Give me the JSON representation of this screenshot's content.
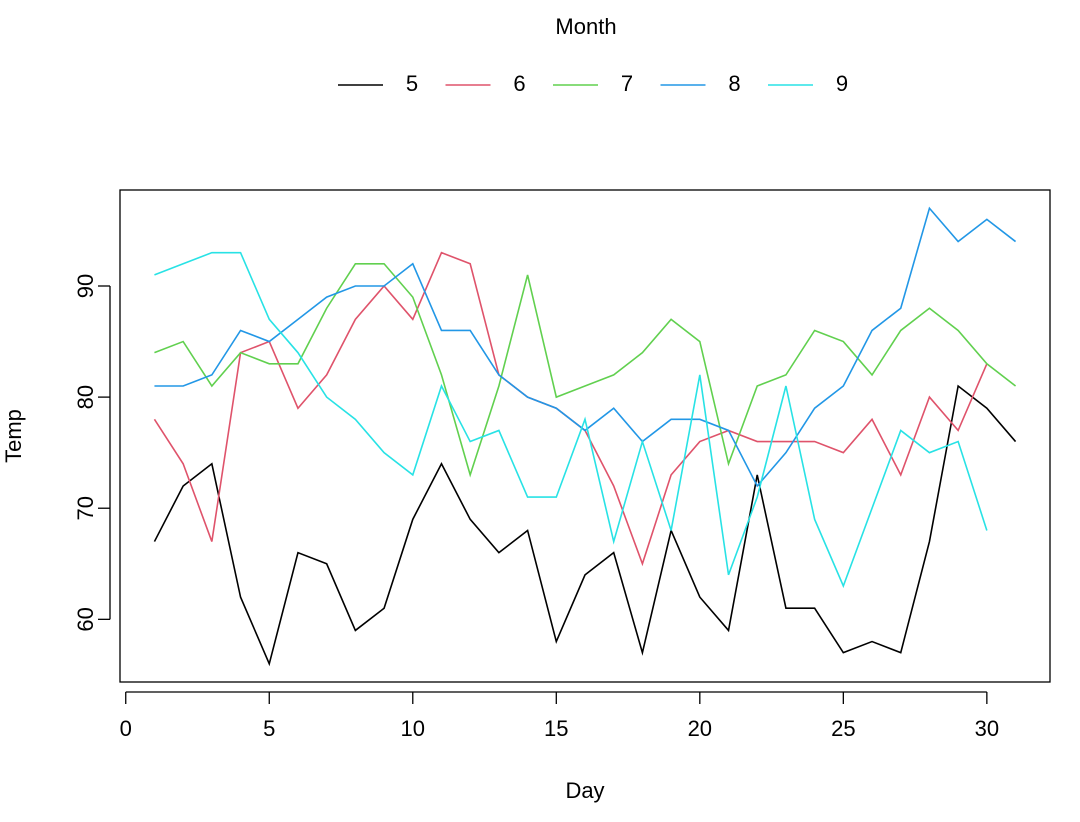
{
  "chart_data": {
    "type": "line",
    "xlabel": "Day",
    "ylabel": "Temp",
    "legend_title": "Month",
    "legend_position": "top",
    "x": [
      1,
      2,
      3,
      4,
      5,
      6,
      7,
      8,
      9,
      10,
      11,
      12,
      13,
      14,
      15,
      16,
      17,
      18,
      19,
      20,
      21,
      22,
      23,
      24,
      25,
      26,
      27,
      28,
      29,
      30,
      31
    ],
    "series": [
      {
        "name": "5",
        "color": "#000000",
        "values": [
          67,
          72,
          74,
          62,
          56,
          66,
          65,
          59,
          61,
          69,
          74,
          69,
          66,
          68,
          58,
          64,
          66,
          57,
          68,
          62,
          59,
          73,
          61,
          61,
          57,
          58,
          57,
          67,
          81,
          79,
          76
        ]
      },
      {
        "name": "6",
        "color": "#DF536B",
        "values": [
          78,
          74,
          67,
          84,
          85,
          79,
          82,
          87,
          90,
          87,
          93,
          92,
          82,
          80,
          79,
          77,
          72,
          65,
          73,
          76,
          77,
          76,
          76,
          76,
          75,
          78,
          73,
          80,
          77,
          83,
          null
        ]
      },
      {
        "name": "7",
        "color": "#61D04F",
        "values": [
          84,
          85,
          81,
          84,
          83,
          83,
          88,
          92,
          92,
          89,
          82,
          73,
          81,
          91,
          80,
          81,
          82,
          84,
          87,
          85,
          74,
          81,
          82,
          86,
          85,
          82,
          86,
          88,
          86,
          83,
          81
        ]
      },
      {
        "name": "8",
        "color": "#2297E6",
        "values": [
          81,
          81,
          82,
          86,
          85,
          87,
          89,
          90,
          90,
          92,
          86,
          86,
          82,
          80,
          79,
          77,
          79,
          76,
          78,
          78,
          77,
          72,
          75,
          79,
          81,
          86,
          88,
          97,
          94,
          96,
          94
        ]
      },
      {
        "name": "9",
        "color": "#28E2E5",
        "values": [
          91,
          92,
          93,
          93,
          87,
          84,
          80,
          78,
          75,
          73,
          81,
          76,
          77,
          71,
          71,
          78,
          67,
          76,
          68,
          82,
          64,
          71,
          81,
          69,
          63,
          70,
          77,
          75,
          76,
          68,
          null
        ]
      }
    ],
    "xlim": [
      -0.2,
      32.2
    ],
    "xticks": [
      0,
      5,
      10,
      15,
      20,
      25,
      30
    ],
    "ylim": [
      54.36,
      98.64
    ],
    "yticks": [
      60,
      70,
      80,
      90
    ]
  }
}
